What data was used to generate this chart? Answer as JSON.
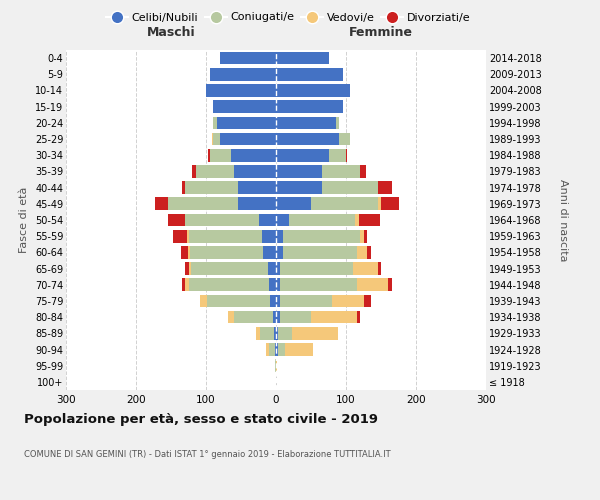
{
  "age_groups": [
    "100+",
    "95-99",
    "90-94",
    "85-89",
    "80-84",
    "75-79",
    "70-74",
    "65-69",
    "60-64",
    "55-59",
    "50-54",
    "45-49",
    "40-44",
    "35-39",
    "30-34",
    "25-29",
    "20-24",
    "15-19",
    "10-14",
    "5-9",
    "0-4"
  ],
  "birth_years": [
    "≤ 1918",
    "1919-1923",
    "1924-1928",
    "1929-1933",
    "1934-1938",
    "1939-1943",
    "1944-1948",
    "1949-1953",
    "1954-1958",
    "1959-1963",
    "1964-1968",
    "1969-1973",
    "1974-1978",
    "1979-1983",
    "1984-1988",
    "1989-1993",
    "1994-1998",
    "1999-2003",
    "2004-2008",
    "2009-2013",
    "2014-2018"
  ],
  "maschi": {
    "celibi": [
      0,
      0,
      2,
      3,
      5,
      8,
      10,
      12,
      18,
      20,
      25,
      55,
      55,
      60,
      65,
      80,
      85,
      90,
      100,
      95,
      80
    ],
    "coniugati": [
      0,
      1,
      8,
      20,
      55,
      90,
      115,
      110,
      105,
      105,
      105,
      100,
      75,
      55,
      30,
      10,
      5,
      0,
      0,
      0,
      0
    ],
    "vedovi": [
      0,
      0,
      5,
      5,
      8,
      10,
      5,
      3,
      3,
      2,
      0,
      0,
      0,
      0,
      0,
      2,
      0,
      0,
      0,
      0,
      0
    ],
    "divorziati": [
      0,
      0,
      0,
      0,
      0,
      0,
      5,
      5,
      10,
      20,
      25,
      18,
      5,
      5,
      2,
      0,
      0,
      0,
      0,
      0,
      0
    ]
  },
  "femmine": {
    "nubili": [
      0,
      0,
      3,
      3,
      5,
      5,
      5,
      5,
      10,
      10,
      18,
      50,
      65,
      65,
      75,
      90,
      85,
      95,
      105,
      95,
      75
    ],
    "coniugate": [
      0,
      0,
      10,
      20,
      45,
      75,
      110,
      105,
      105,
      110,
      95,
      95,
      80,
      55,
      25,
      15,
      5,
      0,
      0,
      0,
      0
    ],
    "vedove": [
      0,
      2,
      40,
      65,
      65,
      45,
      45,
      35,
      15,
      5,
      5,
      5,
      0,
      0,
      0,
      0,
      0,
      0,
      0,
      0,
      0
    ],
    "divorziate": [
      0,
      0,
      0,
      0,
      5,
      10,
      5,
      5,
      5,
      5,
      30,
      25,
      20,
      8,
      2,
      0,
      0,
      0,
      0,
      0,
      0
    ]
  },
  "colors": {
    "celibi": "#4472c4",
    "coniugati": "#b7c9a0",
    "vedovi": "#f5c87a",
    "divorziati": "#cc2020"
  },
  "title": "Popolazione per età, sesso e stato civile - 2019",
  "subtitle": "COMUNE DI SAN GEMINI (TR) - Dati ISTAT 1° gennaio 2019 - Elaborazione TUTTITALIA.IT",
  "xlabel_left": "Maschi",
  "xlabel_right": "Femmine",
  "ylabel_left": "Fasce di età",
  "ylabel_right": "Anni di nascita",
  "xlim": 300,
  "bg_color": "#f0f0f0",
  "plot_bg": "#ffffff",
  "legend_labels": [
    "Celibi/Nubili",
    "Coniugati/e",
    "Vedovi/e",
    "Divorziati/e"
  ]
}
